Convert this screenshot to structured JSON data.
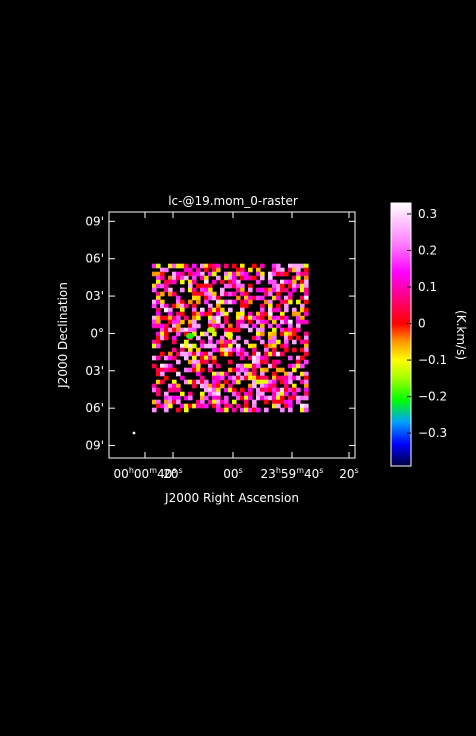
{
  "chart_data": {
    "type": "heatmap",
    "title": "lc-@19.mom_0-raster",
    "xlabel": "J2000 Right Ascension",
    "ylabel": "J2000 Declination",
    "x_ticks": [
      {
        "h": "00",
        "m": "00",
        "s": "40"
      },
      {
        "h": "",
        "m": "",
        "s": "20"
      },
      {
        "h": "",
        "m": "",
        "s": "00"
      },
      {
        "h": "23",
        "m": "59",
        "s": "40"
      },
      {
        "h": "",
        "m": "",
        "s": "20"
      }
    ],
    "y_ticks": [
      "09'",
      "06'",
      "03'",
      "0°",
      "03'",
      "06'",
      "09'"
    ],
    "y_tick_arcmin": [
      9,
      6,
      3,
      0,
      -3,
      -6,
      -9
    ],
    "colorbar": {
      "label": "(K.km/s)",
      "range": [
        -0.39,
        0.33
      ],
      "ticks": [
        "0.3",
        "0.2",
        "0.1",
        "0",
        "−0.1",
        "−0.2",
        "−0.3"
      ],
      "tick_values": [
        0.3,
        0.2,
        0.1,
        0.0,
        -0.1,
        -0.2,
        -0.3
      ],
      "colors": [
        {
          "v": -0.39,
          "c": "#00003c"
        },
        {
          "v": -0.33,
          "c": "#0000ff"
        },
        {
          "v": -0.27,
          "c": "#00a0ff"
        },
        {
          "v": -0.21,
          "c": "#00ff00"
        },
        {
          "v": -0.15,
          "c": "#a0ff00"
        },
        {
          "v": -0.1,
          "c": "#ffff00"
        },
        {
          "v": -0.05,
          "c": "#ff9900"
        },
        {
          "v": 0.0,
          "c": "#ff0000"
        },
        {
          "v": 0.07,
          "c": "#ff0080"
        },
        {
          "v": 0.14,
          "c": "#ff00ff"
        },
        {
          "v": 0.22,
          "c": "#ff80ff"
        },
        {
          "v": 0.33,
          "c": "#ffffff"
        }
      ]
    },
    "map_extent_arcmin": {
      "dec": [
        -6.0,
        5.6
      ]
    },
    "grid": false
  }
}
